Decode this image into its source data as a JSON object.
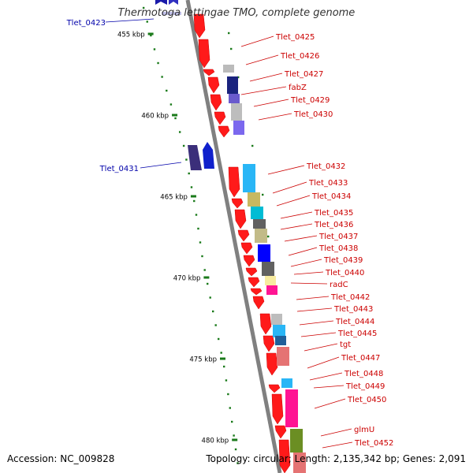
{
  "map": {
    "title": "Thermotoga lettingae TMO, complete genome",
    "accession": "Accession: NC_009828",
    "summary": "Topology: circular; Length: 2,135,342 bp; Genes: 2,091",
    "colors": {
      "forward": "#ff1a1a",
      "label_forward": "#cc0000",
      "label_reverse": "#0000aa",
      "backbone": "#808080",
      "tick": "#1a7a1a"
    }
  },
  "chart_data": {
    "type": "genome_map",
    "title": "Thermotoga lettingae TMO, complete genome",
    "accession": "NC_009828",
    "topology": "circular",
    "length_bp": 2135342,
    "gene_count": 2091,
    "view_range_kbp": [
      453,
      482
    ],
    "scale_ticks": [
      {
        "label": "455 kbp",
        "kbp": 455
      },
      {
        "label": "460 kbp",
        "kbp": 460
      },
      {
        "label": "465 kbp",
        "kbp": 465
      },
      {
        "label": "470 kbp",
        "kbp": 470
      },
      {
        "label": "475 kbp",
        "kbp": 475
      },
      {
        "label": "480 kbp",
        "kbp": 480
      }
    ],
    "reverse_labels": [
      "Tlet_0423",
      "Tlet_0431"
    ],
    "forward_labels": [
      "Tlet_0425",
      "Tlet_0426",
      "Tlet_0427",
      "fabZ",
      "Tlet_0429",
      "Tlet_0430",
      "Tlet_0432",
      "Tlet_0433",
      "Tlet_0434",
      "Tlet_0435",
      "Tlet_0436",
      "Tlet_0437",
      "Tlet_0438",
      "Tlet_0439",
      "Tlet_0440",
      "radC",
      "Tlet_0442",
      "Tlet_0443",
      "Tlet_0444",
      "Tlet_0445",
      "tgt",
      "Tlet_0447",
      "Tlet_0448",
      "Tlet_0449",
      "Tlet_0450",
      "glmU",
      "Tlet_0452"
    ]
  }
}
